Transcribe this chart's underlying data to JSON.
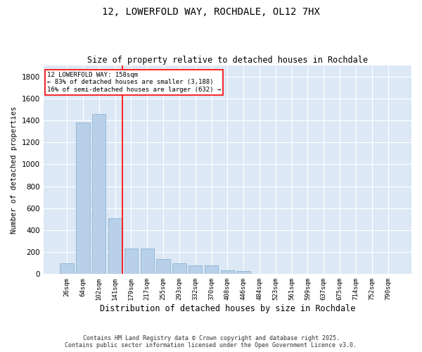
{
  "title_line1": "12, LOWERFOLD WAY, ROCHDALE, OL12 7HX",
  "title_line2": "Size of property relative to detached houses in Rochdale",
  "xlabel": "Distribution of detached houses by size in Rochdale",
  "ylabel": "Number of detached properties",
  "categories": [
    "26sqm",
    "64sqm",
    "102sqm",
    "141sqm",
    "179sqm",
    "217sqm",
    "255sqm",
    "293sqm",
    "332sqm",
    "370sqm",
    "408sqm",
    "446sqm",
    "484sqm",
    "523sqm",
    "561sqm",
    "599sqm",
    "637sqm",
    "675sqm",
    "714sqm",
    "752sqm",
    "790sqm"
  ],
  "values": [
    100,
    1380,
    1460,
    510,
    230,
    230,
    140,
    100,
    80,
    80,
    35,
    25,
    0,
    0,
    0,
    0,
    0,
    0,
    0,
    0,
    0
  ],
  "bar_color": "#b8d0e8",
  "bar_edgecolor": "#8ab4d4",
  "annotation_title": "12 LOWERFOLD WAY: 158sqm",
  "annotation_line1": "← 83% of detached houses are smaller (3,188)",
  "annotation_line2": "16% of semi-detached houses are larger (632) →",
  "ylim": [
    0,
    1900
  ],
  "yticks": [
    0,
    200,
    400,
    600,
    800,
    1000,
    1200,
    1400,
    1600,
    1800
  ],
  "background_color": "#dce8f5",
  "grid_color": "#ffffff",
  "fig_background": "#ffffff",
  "footer_line1": "Contains HM Land Registry data © Crown copyright and database right 2025.",
  "footer_line2": "Contains public sector information licensed under the Open Government Licence v3.0."
}
